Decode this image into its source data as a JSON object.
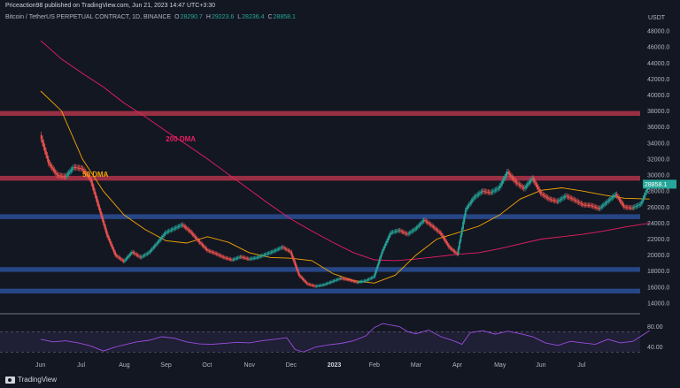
{
  "header": {
    "published_by": "Priceaction98 published on TradingView.com, Jun 21, 2023 14:47 UTC+3:30",
    "symbol": "Bitcoin / TetherUS PERPETUAL CONTRACT, 1D, BINANCE",
    "ohlc": [
      {
        "key": "O",
        "value": "28290.7"
      },
      {
        "key": "H",
        "value": "29223.6"
      },
      {
        "key": "L",
        "value": "28236.4"
      },
      {
        "key": "C",
        "value": "28858.1"
      }
    ],
    "currency": "USDT"
  },
  "footer": {
    "brand": "TradingView"
  },
  "colors": {
    "up": "#26a69a",
    "down": "#ef5350",
    "dma50": "#f7a600",
    "dma200": "#e91e63",
    "resistance_zone": "#b2344a",
    "support_zone": "#2b4f96",
    "rsi": "#9b4de0",
    "background": "#131722"
  },
  "chart_data": {
    "type": "candlestick",
    "y_axis": {
      "min": 13000,
      "max": 49000,
      "ticks": [
        "48000.0",
        "46000.0",
        "44000.0",
        "42000.0",
        "40000.0",
        "38000.0",
        "36000.0",
        "34000.0",
        "32000.0",
        "30000.0",
        "28000.0",
        "26000.0",
        "24000.0",
        "22000.0",
        "20000.0",
        "18000.0",
        "16000.0",
        "14000.0"
      ]
    },
    "x_axis": {
      "labels": [
        "Jun",
        "Jul",
        "Aug",
        "Sep",
        "Oct",
        "Nov",
        "Dec",
        "2023",
        "Feb",
        "Mar",
        "Apr",
        "May",
        "Jun",
        "Jul"
      ]
    },
    "last_price": "28858.1",
    "zones": [
      {
        "kind": "resistance",
        "from": 37400,
        "to": 38000
      },
      {
        "kind": "resistance",
        "from": 29300,
        "to": 29900
      },
      {
        "kind": "support",
        "from": 24500,
        "to": 25100
      },
      {
        "kind": "support",
        "from": 17900,
        "to": 18500
      },
      {
        "kind": "support",
        "from": 15200,
        "to": 15800
      }
    ],
    "annotations": [
      {
        "text": "200 DMA",
        "color": "#e91e63",
        "x_month": 3.0,
        "price": 34200
      },
      {
        "text": "50 DMA",
        "color": "#f7a600",
        "x_month": 1.0,
        "price": 29800
      }
    ],
    "price_path": [
      [
        0.0,
        35000
      ],
      [
        0.2,
        31500
      ],
      [
        0.4,
        30000
      ],
      [
        0.6,
        29800
      ],
      [
        0.8,
        31000
      ],
      [
        1.0,
        30800
      ],
      [
        1.2,
        29500
      ],
      [
        1.4,
        26000
      ],
      [
        1.6,
        22500
      ],
      [
        1.8,
        20000
      ],
      [
        2.0,
        19200
      ],
      [
        2.2,
        20400
      ],
      [
        2.4,
        19700
      ],
      [
        2.6,
        20300
      ],
      [
        2.8,
        21500
      ],
      [
        3.0,
        22800
      ],
      [
        3.2,
        23300
      ],
      [
        3.4,
        23800
      ],
      [
        3.6,
        22900
      ],
      [
        3.8,
        21700
      ],
      [
        4.0,
        20600
      ],
      [
        4.2,
        20200
      ],
      [
        4.4,
        19700
      ],
      [
        4.6,
        19400
      ],
      [
        4.8,
        19800
      ],
      [
        5.0,
        19500
      ],
      [
        5.2,
        19700
      ],
      [
        5.4,
        20100
      ],
      [
        5.6,
        20500
      ],
      [
        5.8,
        21000
      ],
      [
        6.0,
        20400
      ],
      [
        6.2,
        17500
      ],
      [
        6.4,
        16400
      ],
      [
        6.6,
        16100
      ],
      [
        6.8,
        16300
      ],
      [
        7.0,
        16700
      ],
      [
        7.2,
        17100
      ],
      [
        7.4,
        16900
      ],
      [
        7.6,
        16600
      ],
      [
        7.8,
        16800
      ],
      [
        8.0,
        17300
      ],
      [
        8.2,
        20500
      ],
      [
        8.4,
        22800
      ],
      [
        8.6,
        23100
      ],
      [
        8.8,
        22600
      ],
      [
        9.0,
        23300
      ],
      [
        9.2,
        24400
      ],
      [
        9.4,
        23600
      ],
      [
        9.6,
        22700
      ],
      [
        9.8,
        21000
      ],
      [
        10.0,
        20100
      ],
      [
        10.2,
        25700
      ],
      [
        10.4,
        27200
      ],
      [
        10.6,
        28000
      ],
      [
        10.8,
        27800
      ],
      [
        11.0,
        28400
      ],
      [
        11.2,
        30400
      ],
      [
        11.4,
        29100
      ],
      [
        11.6,
        28300
      ],
      [
        11.8,
        29600
      ],
      [
        12.0,
        27700
      ],
      [
        12.2,
        27000
      ],
      [
        12.4,
        26700
      ],
      [
        12.6,
        27400
      ],
      [
        12.8,
        26900
      ],
      [
        13.0,
        26300
      ],
      [
        13.2,
        26200
      ],
      [
        13.4,
        25800
      ],
      [
        13.6,
        26700
      ],
      [
        13.8,
        27600
      ],
      [
        14.0,
        26000
      ],
      [
        14.2,
        25900
      ],
      [
        14.4,
        26400
      ],
      [
        14.6,
        28900
      ]
    ],
    "dma50_path": [
      [
        0.0,
        40500
      ],
      [
        0.5,
        38000
      ],
      [
        1.0,
        32000
      ],
      [
        1.5,
        28000
      ],
      [
        2.0,
        25000
      ],
      [
        2.5,
        23200
      ],
      [
        3.0,
        21800
      ],
      [
        3.5,
        21500
      ],
      [
        4.0,
        22300
      ],
      [
        4.5,
        21600
      ],
      [
        5.0,
        20300
      ],
      [
        5.5,
        19700
      ],
      [
        6.0,
        19600
      ],
      [
        6.5,
        19300
      ],
      [
        7.0,
        17700
      ],
      [
        7.5,
        16800
      ],
      [
        8.0,
        16500
      ],
      [
        8.5,
        17500
      ],
      [
        9.0,
        20000
      ],
      [
        9.5,
        22000
      ],
      [
        10.0,
        22800
      ],
      [
        10.5,
        23600
      ],
      [
        11.0,
        25000
      ],
      [
        11.5,
        27000
      ],
      [
        12.0,
        28100
      ],
      [
        12.5,
        28400
      ],
      [
        13.0,
        28000
      ],
      [
        13.5,
        27500
      ],
      [
        14.0,
        27100
      ],
      [
        14.6,
        27000
      ]
    ],
    "dma200_path": [
      [
        0.0,
        46800
      ],
      [
        0.5,
        44500
      ],
      [
        1.0,
        42700
      ],
      [
        1.5,
        41000
      ],
      [
        2.0,
        39000
      ],
      [
        2.5,
        37300
      ],
      [
        3.0,
        35500
      ],
      [
        3.5,
        33800
      ],
      [
        4.0,
        32000
      ],
      [
        4.5,
        30100
      ],
      [
        5.0,
        28200
      ],
      [
        5.5,
        26300
      ],
      [
        6.0,
        24500
      ],
      [
        6.5,
        23000
      ],
      [
        7.0,
        21600
      ],
      [
        7.5,
        20300
      ],
      [
        8.0,
        19400
      ],
      [
        8.5,
        19300
      ],
      [
        9.0,
        19500
      ],
      [
        9.5,
        19800
      ],
      [
        10.0,
        20100
      ],
      [
        10.5,
        20300
      ],
      [
        11.0,
        20800
      ],
      [
        11.5,
        21400
      ],
      [
        12.0,
        22000
      ],
      [
        12.5,
        22300
      ],
      [
        13.0,
        22600
      ],
      [
        13.5,
        23000
      ],
      [
        14.0,
        23500
      ],
      [
        14.6,
        24000
      ]
    ],
    "rsi": {
      "ticks": [
        "80.00",
        "40.00"
      ],
      "min": 20,
      "max": 100,
      "upper": 70,
      "lower": 30,
      "path": [
        [
          0.0,
          55
        ],
        [
          0.3,
          50
        ],
        [
          0.6,
          52
        ],
        [
          0.9,
          48
        ],
        [
          1.2,
          42
        ],
        [
          1.5,
          32
        ],
        [
          1.8,
          40
        ],
        [
          2.0,
          44
        ],
        [
          2.3,
          50
        ],
        [
          2.6,
          53
        ],
        [
          2.9,
          60
        ],
        [
          3.2,
          57
        ],
        [
          3.5,
          50
        ],
        [
          3.8,
          46
        ],
        [
          4.1,
          45
        ],
        [
          4.4,
          47
        ],
        [
          4.7,
          49
        ],
        [
          5.0,
          48
        ],
        [
          5.3,
          52
        ],
        [
          5.6,
          55
        ],
        [
          5.9,
          58
        ],
        [
          6.1,
          35
        ],
        [
          6.3,
          30
        ],
        [
          6.6,
          40
        ],
        [
          6.9,
          44
        ],
        [
          7.2,
          47
        ],
        [
          7.5,
          52
        ],
        [
          7.8,
          62
        ],
        [
          8.0,
          78
        ],
        [
          8.2,
          86
        ],
        [
          8.4,
          83
        ],
        [
          8.6,
          80
        ],
        [
          8.8,
          70
        ],
        [
          9.0,
          66
        ],
        [
          9.3,
          73
        ],
        [
          9.6,
          60
        ],
        [
          9.9,
          52
        ],
        [
          10.1,
          45
        ],
        [
          10.3,
          68
        ],
        [
          10.6,
          72
        ],
        [
          10.9,
          65
        ],
        [
          11.2,
          71
        ],
        [
          11.5,
          66
        ],
        [
          11.8,
          60
        ],
        [
          12.1,
          48
        ],
        [
          12.4,
          43
        ],
        [
          12.7,
          51
        ],
        [
          13.0,
          48
        ],
        [
          13.3,
          45
        ],
        [
          13.6,
          55
        ],
        [
          13.9,
          48
        ],
        [
          14.2,
          51
        ],
        [
          14.6,
          72
        ]
      ]
    }
  }
}
